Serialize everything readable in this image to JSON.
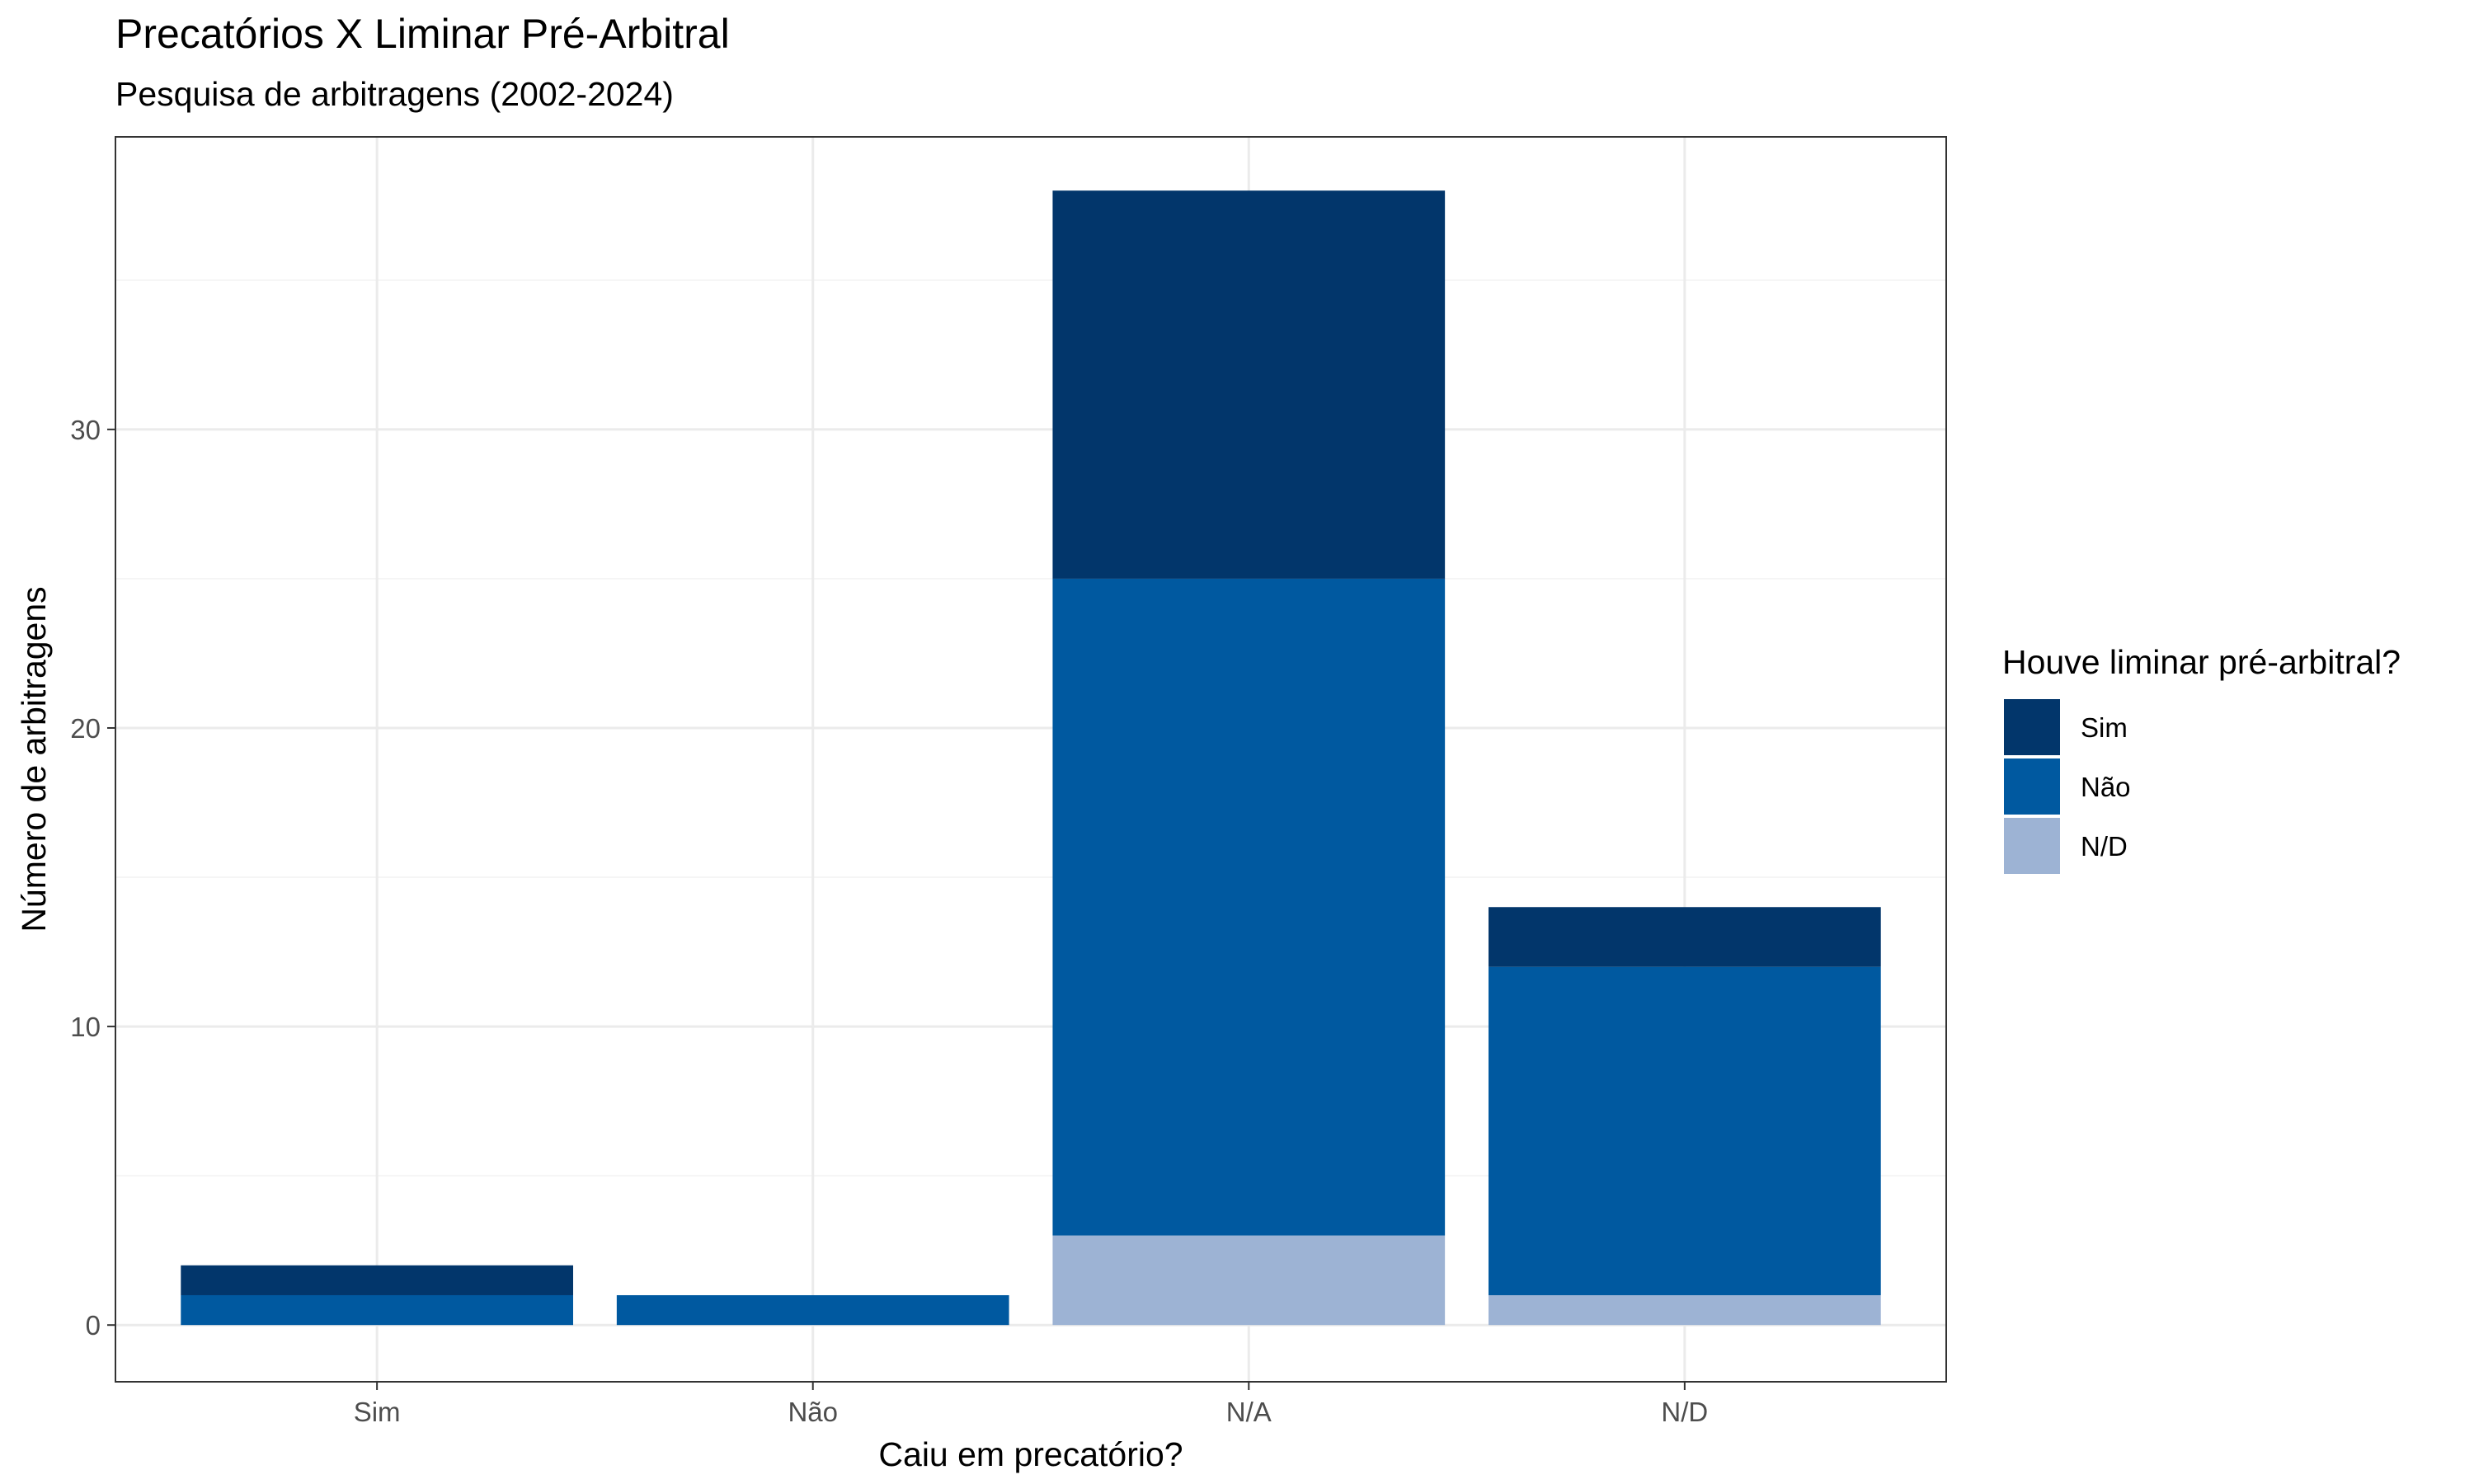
{
  "chart_data": {
    "type": "bar",
    "stacked": true,
    "title": "Precatórios X Liminar Pré-Arbitral",
    "subtitle": "Pesquisa de arbitragens (2002-2024)",
    "xlabel": "Caiu em precatório?",
    "ylabel": "Número de arbitragens",
    "categories": [
      "Sim",
      "Não",
      "N/A",
      "N/D"
    ],
    "ylim": [
      -1.9,
      39.8
    ],
    "yticks": [
      0,
      10,
      20,
      30
    ],
    "grid": true,
    "legend": {
      "title": "Houve liminar pré-arbitral?",
      "position": "right"
    },
    "series": [
      {
        "name": "N/D",
        "color": "#9db3d4",
        "values": [
          0,
          0,
          3,
          1
        ]
      },
      {
        "name": "Não",
        "color": "#0059a0",
        "values": [
          1,
          1,
          22,
          11
        ]
      },
      {
        "name": "Sim",
        "color": "#02366b",
        "values": [
          1,
          0,
          13,
          2
        ]
      }
    ],
    "legend_order": [
      "Sim",
      "Não",
      "N/D"
    ]
  }
}
